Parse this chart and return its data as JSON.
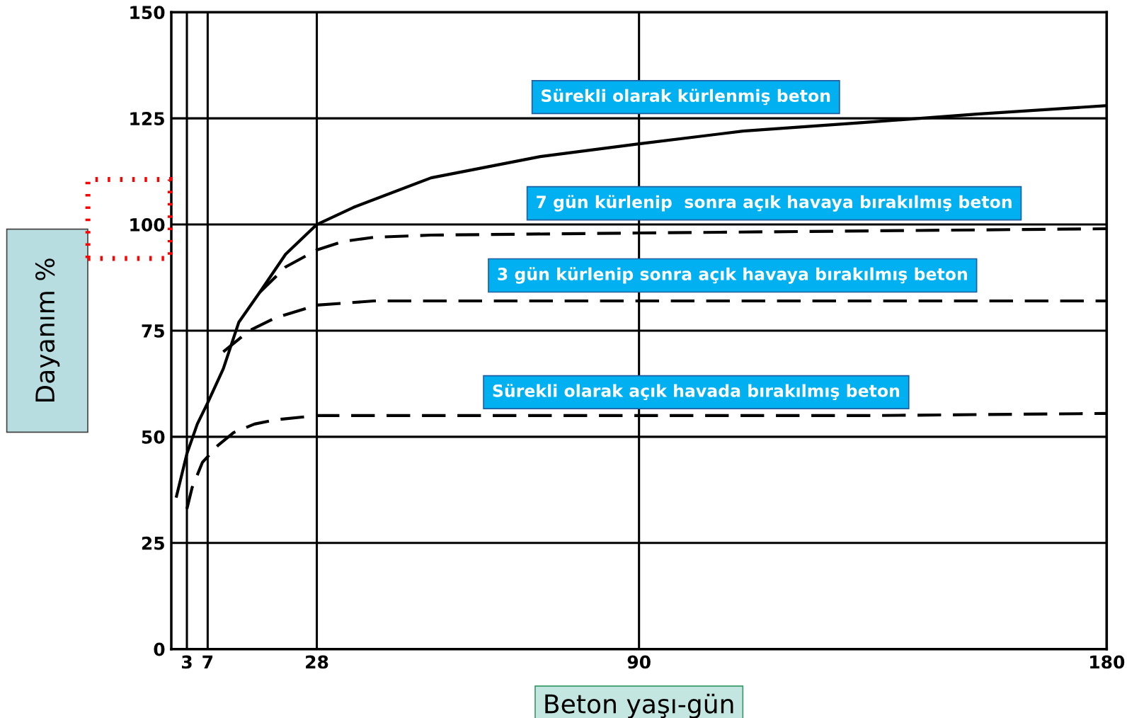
{
  "chart_data": {
    "type": "line",
    "xlabel": "Beton yaşı-gün",
    "ylabel": "Dayanım %",
    "xlim": [
      0,
      180
    ],
    "xticks": [
      3,
      7,
      28,
      90,
      180
    ],
    "ylim": [
      0,
      150
    ],
    "yticks": [
      0,
      25,
      50,
      75,
      100,
      125,
      150
    ],
    "grid": true,
    "legend": false,
    "marker": "none",
    "series": [
      {
        "name": "Sürekli olarak kürlenmiş beton",
        "color": "#000000",
        "line_style": "solid",
        "x": [
          1,
          3,
          5,
          7,
          10,
          13,
          17,
          22,
          28,
          35,
          50,
          71,
          90,
          110,
          133,
          155,
          180
        ],
        "values": [
          36,
          46,
          53,
          58,
          66,
          77,
          84,
          93,
          100,
          104,
          111,
          116,
          119,
          122,
          124,
          126,
          128
        ]
      },
      {
        "name": "7 gün kürlenip  sonra açık havaya bırakılmış beton",
        "color": "#000000",
        "line_style": "dashed",
        "x": [
          17,
          22,
          28,
          33,
          39,
          50,
          90,
          135,
          180
        ],
        "values": [
          84,
          90,
          94,
          96,
          97,
          97.5,
          98,
          98.5,
          99
        ]
      },
      {
        "name": "3 gün kürlenip sonra açık havaya bırakılmış beton",
        "color": "#000000",
        "line_style": "dashed",
        "x": [
          10,
          15,
          20,
          28,
          39,
          60,
          90,
          135,
          180
        ],
        "values": [
          70,
          75,
          78,
          81,
          82,
          82,
          82,
          82,
          82
        ]
      },
      {
        "name": "Sürekli olarak açık havada bırakılmış beton",
        "color": "#000000",
        "line_style": "dashed",
        "x": [
          3,
          4,
          6,
          9,
          12,
          16,
          20,
          28,
          50,
          90,
          135,
          180
        ],
        "values": [
          33,
          38,
          44,
          48,
          51,
          53,
          54,
          55,
          55,
          55,
          55,
          55.5
        ]
      }
    ]
  }
}
